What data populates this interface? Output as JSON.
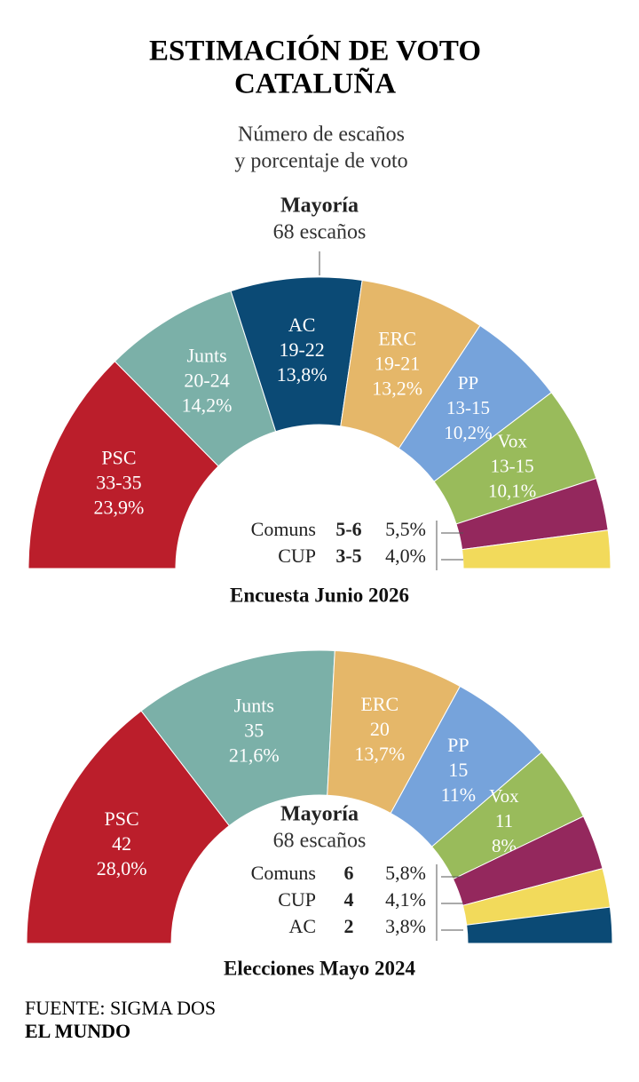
{
  "title": [
    "ESTIMACIÓN DE VOTO",
    "CATALUÑA"
  ],
  "subtitle": [
    "Número de escaños",
    "y porcentaje de voto"
  ],
  "chart_data": [
    {
      "type": "semicircle",
      "caption": "Encuesta Junio 2026",
      "majority_title": "Mayoría",
      "majority_seats": "68 escaños",
      "categories": [
        "PSC",
        "Junts",
        "AC",
        "ERC",
        "PP",
        "Vox",
        "Comuns",
        "CUP"
      ],
      "colors": [
        "#bb1e2b",
        "#7bb0a8",
        "#0b4a75",
        "#e5b769",
        "#76a3db",
        "#99bb5b",
        "#94285d",
        "#f2da5b"
      ],
      "seats": [
        "33-35",
        "20-24",
        "19-22",
        "19-21",
        "13-15",
        "13-15",
        "5-6",
        "3-5"
      ],
      "values": [
        23.9,
        14.2,
        13.8,
        13.2,
        10.2,
        10.1,
        5.5,
        4.0
      ],
      "value_labels": [
        "23,9%",
        "14,2%",
        "13,8%",
        "13,2%",
        "10,2%",
        "10,1%",
        "5,5%",
        "4,0%"
      ]
    },
    {
      "type": "semicircle",
      "caption": "Elecciones Mayo 2024",
      "majority_title": "Mayoría",
      "majority_seats": "68 escaños",
      "categories": [
        "PSC",
        "Junts",
        "ERC",
        "PP",
        "Vox",
        "Comuns",
        "CUP",
        "AC"
      ],
      "colors": [
        "#bb1e2b",
        "#7bb0a8",
        "#e5b769",
        "#76a3db",
        "#99bb5b",
        "#94285d",
        "#f2da5b",
        "#0b4a75"
      ],
      "seats": [
        42,
        35,
        20,
        15,
        11,
        6,
        4,
        2
      ],
      "values": [
        28.0,
        21.6,
        13.7,
        11,
        8,
        5.8,
        4.1,
        3.8
      ],
      "value_labels": [
        "28,0%",
        "21,6%",
        "13,7%",
        "11%",
        "8%",
        "5,8%",
        "4,1%",
        "3,8%"
      ]
    }
  ],
  "source": "FUENTE: SIGMA DOS",
  "brand": "EL MUNDO"
}
